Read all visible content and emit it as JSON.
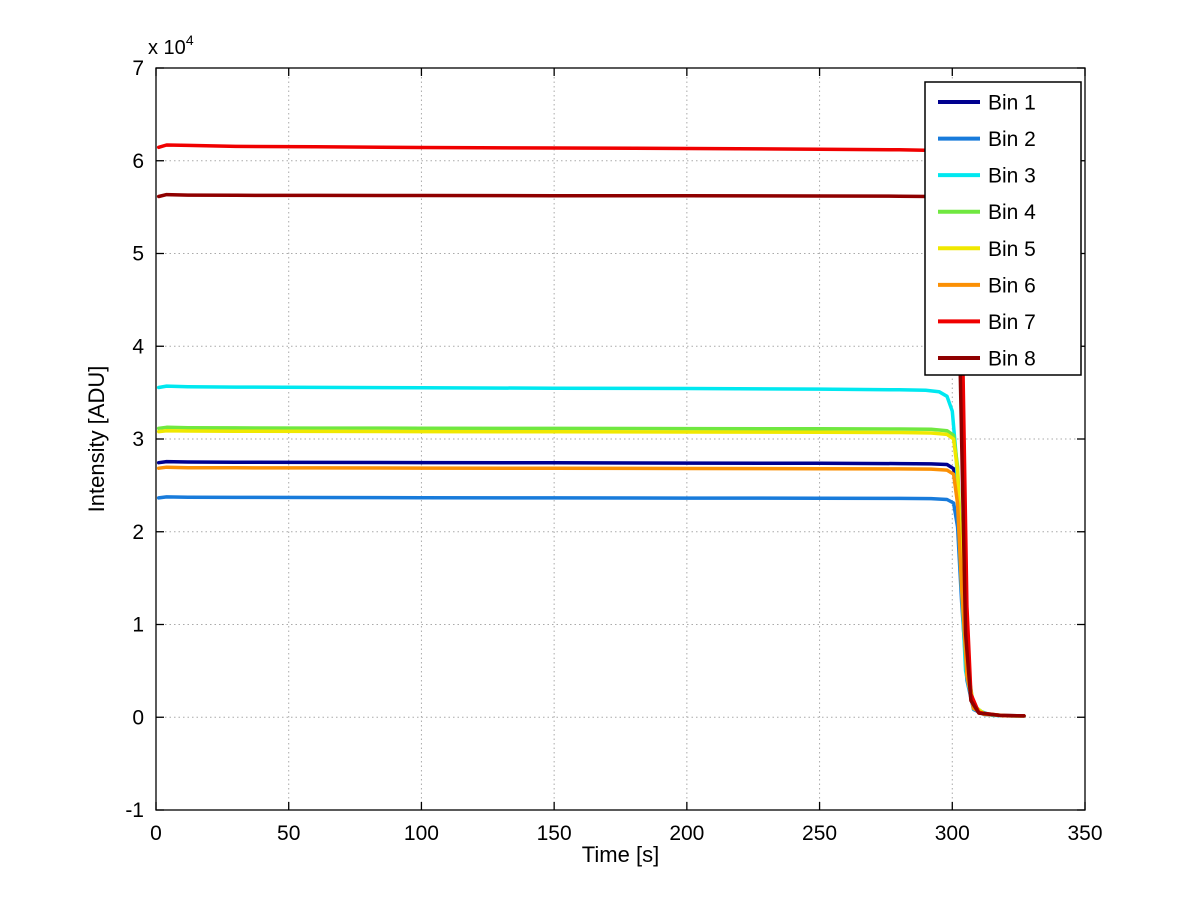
{
  "figure": {
    "background": "#ffffff"
  },
  "chart_data": {
    "type": "line",
    "title": "",
    "xlabel": "Time [s]",
    "ylabel": "Intensity [ADU]",
    "y_exponent_prefix": "x 10",
    "y_exponent": "4",
    "xlim": [
      0,
      350
    ],
    "ylim": [
      -10000,
      70000
    ],
    "xticks": [
      0,
      50,
      100,
      150,
      200,
      250,
      300,
      350
    ],
    "xtick_labels": [
      "0",
      "50",
      "100",
      "150",
      "200",
      "250",
      "300",
      "350"
    ],
    "yticks": [
      -10000,
      0,
      10000,
      20000,
      30000,
      40000,
      50000,
      60000,
      70000
    ],
    "ytick_labels": [
      "-1",
      "0",
      "1",
      "2",
      "3",
      "4",
      "5",
      "6",
      "7"
    ],
    "grid": true,
    "grid_style": "dotted",
    "grid_color": "#aaaaaa",
    "axis_color": "#000000",
    "line_width": 3.5,
    "legend": {
      "position": "top-right",
      "entries": [
        "Bin 1",
        "Bin 2",
        "Bin 3",
        "Bin 4",
        "Bin 5",
        "Bin 6",
        "Bin 7",
        "Bin 8"
      ]
    },
    "series": [
      {
        "name": "Bin 1",
        "color": "#00008F",
        "x": [
          1,
          4,
          12,
          30,
          60,
          100,
          150,
          200,
          250,
          280,
          292,
          298,
          300.5,
          302,
          303.5,
          305.5,
          308,
          312,
          320,
          327
        ],
        "y": [
          27450,
          27560,
          27520,
          27500,
          27480,
          27460,
          27430,
          27400,
          27380,
          27350,
          27320,
          27250,
          26800,
          24000,
          15000,
          5000,
          1100,
          350,
          160,
          150
        ]
      },
      {
        "name": "Bin 2",
        "color": "#187BDB",
        "x": [
          1,
          4,
          12,
          30,
          60,
          100,
          150,
          200,
          250,
          280,
          292,
          298,
          300.5,
          302,
          303.5,
          305.5,
          308,
          312,
          320,
          327
        ],
        "y": [
          23650,
          23760,
          23720,
          23700,
          23690,
          23670,
          23650,
          23630,
          23620,
          23600,
          23570,
          23480,
          23100,
          20500,
          12500,
          4000,
          850,
          300,
          160,
          150
        ]
      },
      {
        "name": "Bin 3",
        "color": "#00E8F0",
        "x": [
          1,
          4,
          12,
          30,
          60,
          100,
          150,
          200,
          250,
          280,
          290,
          295,
          298,
          300,
          301.5,
          303,
          305,
          308,
          315,
          327
        ],
        "y": [
          35550,
          35700,
          35640,
          35600,
          35560,
          35520,
          35480,
          35440,
          35380,
          35300,
          35250,
          35100,
          34600,
          33000,
          28000,
          17000,
          5000,
          900,
          200,
          150
        ]
      },
      {
        "name": "Bin 4",
        "color": "#70E840",
        "x": [
          1,
          4,
          12,
          30,
          60,
          100,
          150,
          200,
          250,
          280,
          292,
          298,
          300.5,
          302,
          303.5,
          305.5,
          308,
          312,
          320,
          327
        ],
        "y": [
          31150,
          31260,
          31220,
          31200,
          31180,
          31160,
          31140,
          31120,
          31100,
          31080,
          31050,
          30900,
          30400,
          27000,
          16500,
          5800,
          1250,
          400,
          160,
          150
        ]
      },
      {
        "name": "Bin 5",
        "color": "#F0E800",
        "x": [
          1,
          4,
          12,
          30,
          60,
          100,
          150,
          200,
          250,
          280,
          292,
          298,
          300.5,
          302,
          303.5,
          305.5,
          308,
          312,
          320,
          327
        ],
        "y": [
          30800,
          30900,
          30860,
          30840,
          30820,
          30800,
          30780,
          30760,
          30730,
          30700,
          30650,
          30500,
          30000,
          26500,
          16000,
          5500,
          1200,
          380,
          160,
          150
        ]
      },
      {
        "name": "Bin 6",
        "color": "#FB9005",
        "x": [
          1,
          4,
          12,
          30,
          60,
          100,
          150,
          200,
          250,
          280,
          292,
          298,
          300.5,
          302,
          303.5,
          305.5,
          308,
          312,
          320,
          327
        ],
        "y": [
          26850,
          26960,
          26900,
          26900,
          26880,
          26860,
          26840,
          26820,
          26800,
          26780,
          26750,
          26650,
          26200,
          23000,
          14000,
          4500,
          950,
          320,
          160,
          150
        ]
      },
      {
        "name": "Bin 7",
        "color": "#F00000",
        "x": [
          1,
          4,
          12,
          30,
          60,
          100,
          150,
          200,
          250,
          280,
          292,
          298,
          301,
          302.5,
          304,
          305.5,
          307,
          310,
          318,
          327
        ],
        "y": [
          61450,
          61700,
          61650,
          61550,
          61500,
          61430,
          61380,
          61320,
          61250,
          61180,
          61120,
          61050,
          60700,
          57000,
          38000,
          12000,
          2500,
          500,
          200,
          150
        ]
      },
      {
        "name": "Bin 8",
        "color": "#8F0000",
        "x": [
          1,
          4,
          12,
          30,
          60,
          100,
          150,
          200,
          250,
          280,
          292,
          298,
          300.5,
          302,
          303.5,
          305,
          307,
          310,
          318,
          327
        ],
        "y": [
          56150,
          56350,
          56300,
          56280,
          56260,
          56250,
          56230,
          56220,
          56200,
          56180,
          56150,
          56050,
          55600,
          51000,
          30000,
          9000,
          1800,
          450,
          200,
          150
        ]
      }
    ]
  }
}
